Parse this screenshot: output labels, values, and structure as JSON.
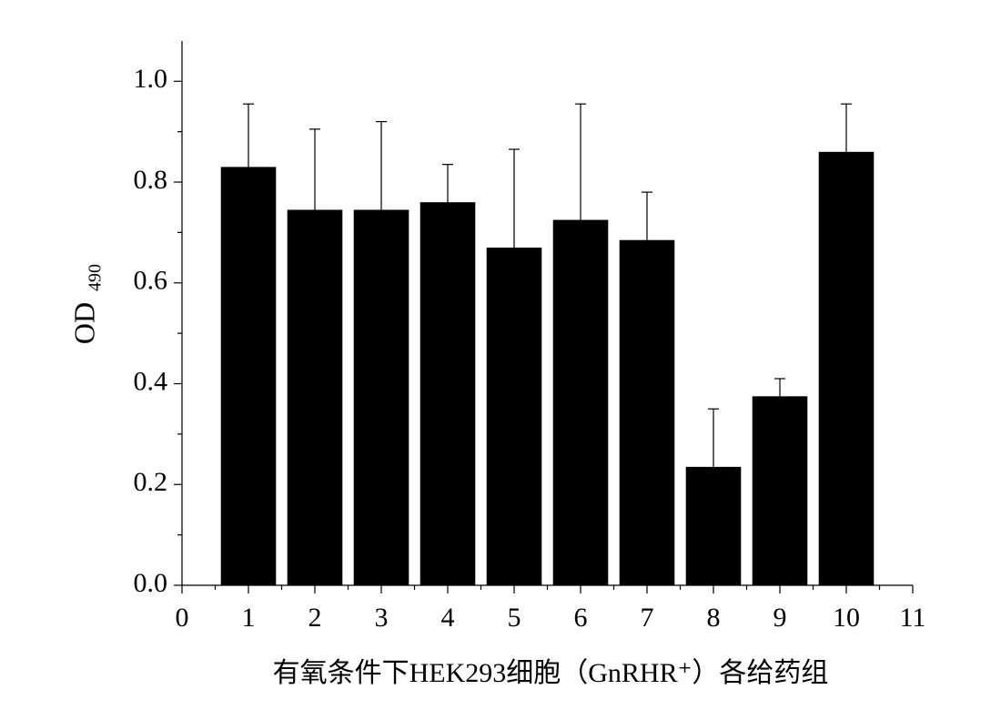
{
  "chart_data": {
    "type": "bar",
    "x": [
      1,
      2,
      3,
      4,
      5,
      6,
      7,
      8,
      9,
      10
    ],
    "values": [
      0.83,
      0.745,
      0.745,
      0.76,
      0.67,
      0.725,
      0.685,
      0.235,
      0.375,
      0.86
    ],
    "errors": [
      0.125,
      0.16,
      0.175,
      0.075,
      0.195,
      0.23,
      0.095,
      0.115,
      0.035,
      0.095
    ],
    "color": "#000000",
    "xlim": [
      0,
      11
    ],
    "xticks": [
      0,
      1,
      2,
      3,
      4,
      5,
      6,
      7,
      8,
      9,
      10,
      11
    ],
    "ylim": [
      0,
      1.08
    ],
    "yticks": [
      {
        "value": 0,
        "label": "0.0"
      },
      0.2,
      0.4,
      0.6,
      0.8,
      {
        "value": 1,
        "label": "1.0"
      }
    ],
    "ylabel": "OD",
    "ylabel_sub": "490",
    "xlabel": "有氧条件下HEK293细胞（GnRHR⁺）各给药组"
  }
}
